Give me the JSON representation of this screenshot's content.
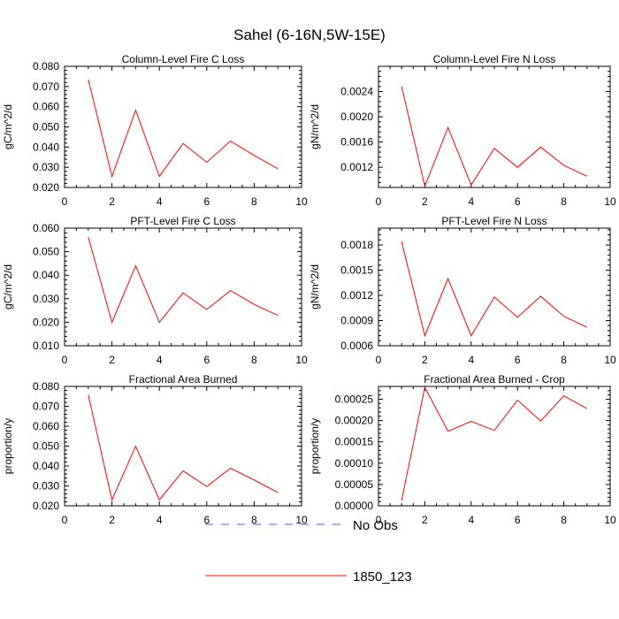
{
  "figure_title": "Sahel (6-16N,5W-15E)",
  "legend": {
    "entries": [
      {
        "label": "No Obs",
        "color": "#5555cc",
        "style": "dashed"
      },
      {
        "label": "1850_123",
        "color": "#ff0000",
        "style": "solid"
      }
    ]
  },
  "chart_data": [
    {
      "type": "line",
      "title": "Column-Level Fire C Loss",
      "xlabel": "",
      "ylabel": "gC/m^2/d",
      "xlim": [
        0,
        10
      ],
      "ylim": [
        0.02,
        0.08
      ],
      "xticks": [
        0,
        2,
        4,
        6,
        8,
        10
      ],
      "xtick_labels": [
        "0",
        "2",
        "4",
        "6",
        "8",
        "10"
      ],
      "yticks": [
        0.02,
        0.03,
        0.04,
        0.05,
        0.06,
        0.07,
        0.08
      ],
      "ytick_labels": [
        "0.020",
        "0.030",
        "0.040",
        "0.050",
        "0.060",
        "0.070",
        "0.080"
      ],
      "x": [
        1,
        2,
        3,
        4,
        5,
        6,
        7,
        8,
        9
      ],
      "series": [
        {
          "name": "1850_123",
          "color": "#ff0000",
          "values": [
            0.0735,
            0.0255,
            0.0583,
            0.0255,
            0.0418,
            0.0325,
            0.043,
            0.0359,
            0.0293
          ]
        }
      ]
    },
    {
      "type": "line",
      "title": "Column-Level Fire N Loss",
      "xlabel": "",
      "ylabel": "gN/m^2/d",
      "xlim": [
        0,
        10
      ],
      "ylim": [
        0.00088,
        0.0028
      ],
      "xticks": [
        0,
        2,
        4,
        6,
        8,
        10
      ],
      "xtick_labels": [
        "0",
        "2",
        "4",
        "6",
        "8",
        "10"
      ],
      "yticks": [
        0.0012,
        0.0016,
        0.002,
        0.0024
      ],
      "ytick_labels": [
        "0.0012",
        "0.0016",
        "0.0020",
        "0.0024"
      ],
      "x": [
        1,
        2,
        3,
        4,
        5,
        6,
        7,
        8,
        9
      ],
      "series": [
        {
          "name": "1850_123",
          "color": "#ff0000",
          "values": [
            0.00248,
            0.0009,
            0.00183,
            0.00092,
            0.0015,
            0.0012,
            0.00152,
            0.00123,
            0.00106
          ]
        }
      ]
    },
    {
      "type": "line",
      "title": "PFT-Level Fire C Loss",
      "xlabel": "",
      "ylabel": "gC/m^2/d",
      "xlim": [
        0,
        10
      ],
      "ylim": [
        0.01,
        0.06
      ],
      "xticks": [
        0,
        2,
        4,
        6,
        8,
        10
      ],
      "xtick_labels": [
        "0",
        "2",
        "4",
        "6",
        "8",
        "10"
      ],
      "yticks": [
        0.01,
        0.02,
        0.03,
        0.04,
        0.05,
        0.06
      ],
      "ytick_labels": [
        "0.010",
        "0.020",
        "0.030",
        "0.040",
        "0.050",
        "0.060"
      ],
      "x": [
        1,
        2,
        3,
        4,
        5,
        6,
        7,
        8,
        9
      ],
      "series": [
        {
          "name": "1850_123",
          "color": "#ff0000",
          "values": [
            0.0562,
            0.02,
            0.044,
            0.02,
            0.0325,
            0.0254,
            0.0335,
            0.0276,
            0.0229
          ]
        }
      ]
    },
    {
      "type": "line",
      "title": "PFT-Level Fire N Loss",
      "xlabel": "",
      "ylabel": "gN/m^2/d",
      "xlim": [
        0,
        10
      ],
      "ylim": [
        0.0006,
        0.002
      ],
      "xticks": [
        0,
        2,
        4,
        6,
        8,
        10
      ],
      "xtick_labels": [
        "0",
        "2",
        "4",
        "6",
        "8",
        "10"
      ],
      "yticks": [
        0.0006,
        0.0009,
        0.0012,
        0.0015,
        0.0018
      ],
      "ytick_labels": [
        "0.0006",
        "0.0009",
        "0.0012",
        "0.0015",
        "0.0018"
      ],
      "x": [
        1,
        2,
        3,
        4,
        5,
        6,
        7,
        8,
        9
      ],
      "series": [
        {
          "name": "1850_123",
          "color": "#ff0000",
          "values": [
            0.00184,
            0.00072,
            0.0014,
            0.00072,
            0.00118,
            0.00094,
            0.00119,
            0.00095,
            0.00082
          ]
        }
      ]
    },
    {
      "type": "line",
      "title": "Fractional Area Burned",
      "xlabel": "",
      "ylabel": "proportion/y",
      "xlim": [
        0,
        10
      ],
      "ylim": [
        0.02,
        0.08
      ],
      "xticks": [
        0,
        2,
        4,
        6,
        8,
        10
      ],
      "xtick_labels": [
        "0",
        "2",
        "4",
        "6",
        "8",
        "10"
      ],
      "yticks": [
        0.02,
        0.03,
        0.04,
        0.05,
        0.06,
        0.07,
        0.08
      ],
      "ytick_labels": [
        "0.020",
        "0.030",
        "0.040",
        "0.050",
        "0.060",
        "0.070",
        "0.080"
      ],
      "x": [
        1,
        2,
        3,
        4,
        5,
        6,
        7,
        8,
        9
      ],
      "series": [
        {
          "name": "1850_123",
          "color": "#ff0000",
          "values": [
            0.0758,
            0.023,
            0.05,
            0.023,
            0.0376,
            0.0297,
            0.0389,
            0.033,
            0.0267
          ]
        }
      ]
    },
    {
      "type": "line",
      "title": "Fractional Area Burned - Crop",
      "xlabel": "",
      "ylabel": "proportion/y",
      "xlim": [
        0,
        10
      ],
      "ylim": [
        0,
        0.00028
      ],
      "xticks": [
        0,
        2,
        4,
        6,
        8,
        10
      ],
      "xtick_labels": [
        "0",
        "2",
        "4",
        "6",
        "8",
        "10"
      ],
      "yticks": [
        0,
        5e-05,
        0.0001,
        0.00015,
        0.0002,
        0.00025
      ],
      "ytick_labels": [
        "0.00000",
        "0.00005",
        "0.00010",
        "0.00015",
        "0.00020",
        "0.00025"
      ],
      "x": [
        1,
        2,
        3,
        4,
        5,
        6,
        7,
        8,
        9
      ],
      "series": [
        {
          "name": "1850_123",
          "color": "#ff0000",
          "values": [
            1.3e-05,
            0.000278,
            0.000175,
            0.000198,
            0.000177,
            0.000248,
            0.000199,
            0.000258,
            0.000228
          ]
        }
      ]
    }
  ]
}
